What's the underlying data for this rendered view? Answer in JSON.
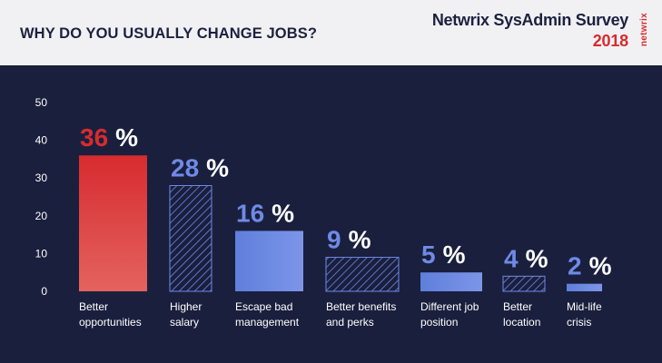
{
  "header": {
    "title": "WHY DO YOU USUALLY CHANGE JOBS?",
    "brand_name": "Netwrix SysAdmin Survey",
    "brand_year": "2018",
    "brand_logo": "netwrix"
  },
  "colors": {
    "background": "#1a1f3d",
    "header_bg": "#f1f1f3",
    "accent_red": "#d72b2f",
    "bar_blue": "#6b87e0",
    "label_blue": "#6f8ae6"
  },
  "chart_data": {
    "type": "bar",
    "title": "WHY DO YOU USUALLY CHANGE JOBS?",
    "xlabel": "",
    "ylabel": "",
    "ylim": [
      0,
      50
    ],
    "yticks": [
      "0",
      "10",
      "20",
      "30",
      "40",
      "50"
    ],
    "categories": [
      [
        "Better",
        "opportunities"
      ],
      [
        "Higher",
        "salary"
      ],
      [
        "Escape bad",
        "management"
      ],
      [
        "Better benefits",
        "and perks"
      ],
      [
        "Different job",
        "position"
      ],
      [
        "Better",
        "location"
      ],
      [
        "Mid-life",
        "crisis"
      ]
    ],
    "values": [
      36,
      28,
      16,
      9,
      5,
      4,
      2
    ],
    "value_labels": [
      "36",
      "28",
      "16",
      "9",
      "5",
      "4",
      "2"
    ],
    "percent_sign": "%",
    "styles": [
      "gradient-red",
      "hatched",
      "solid",
      "hatched",
      "solid",
      "hatched",
      "solid"
    ]
  }
}
